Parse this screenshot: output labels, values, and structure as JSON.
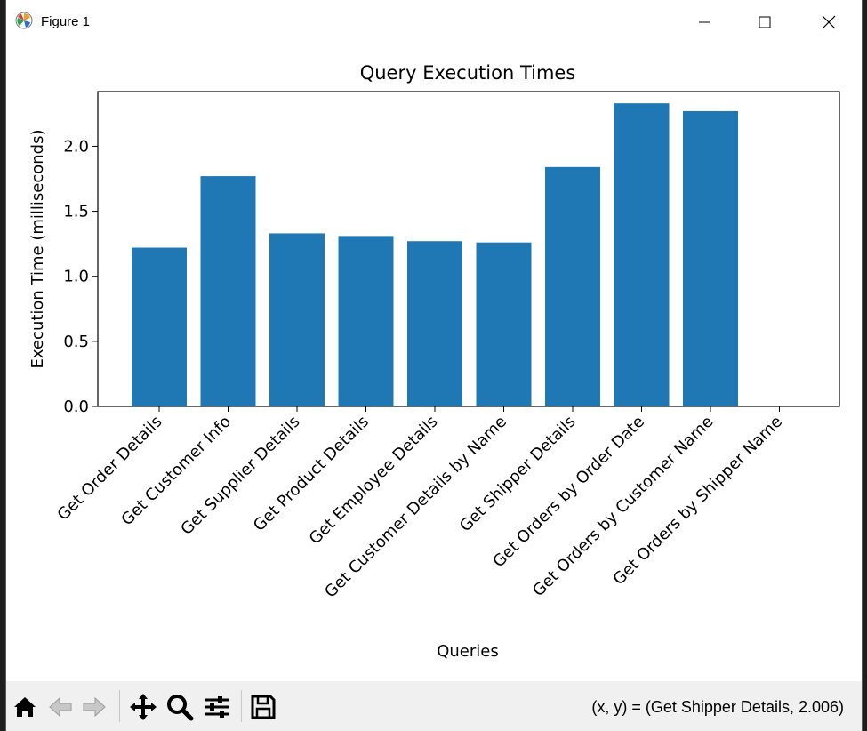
{
  "window": {
    "title": "Figure 1",
    "minimize_glyph": "—",
    "maximize_glyph": "☐",
    "close_glyph": "✕"
  },
  "toolbar": {
    "icons": [
      "home-icon",
      "back-icon",
      "forward-icon",
      "pan-icon",
      "zoom-icon",
      "configure-subplots-icon",
      "save-icon"
    ],
    "coordinates": "(x, y) = (Get Shipper Details, 2.006)"
  },
  "colors": {
    "bar": "#1f77b4",
    "toolbar_bg": "#f0f0f0"
  },
  "chart_data": {
    "type": "bar",
    "title": "Query Execution Times",
    "xlabel": "Queries",
    "ylabel": "Execution Time (milliseconds)",
    "categories": [
      "Get Order Details",
      "Get Customer Info",
      "Get Supplier Details",
      "Get Product Details",
      "Get Employee Details",
      "Get Customer Details by Name",
      "Get Shipper Details",
      "Get Orders by Order Date",
      "Get Orders by Customer Name",
      "Get Orders by Shipper Name"
    ],
    "values": [
      1.22,
      1.77,
      1.33,
      1.31,
      1.27,
      1.26,
      1.84,
      2.33,
      2.27,
      0
    ],
    "ylim": [
      0,
      2.42
    ],
    "yticks": [
      0.0,
      0.5,
      1.0,
      1.5,
      2.0
    ],
    "ytick_labels": [
      "0.0",
      "0.5",
      "1.0",
      "1.5",
      "2.0"
    ],
    "grid": false
  }
}
